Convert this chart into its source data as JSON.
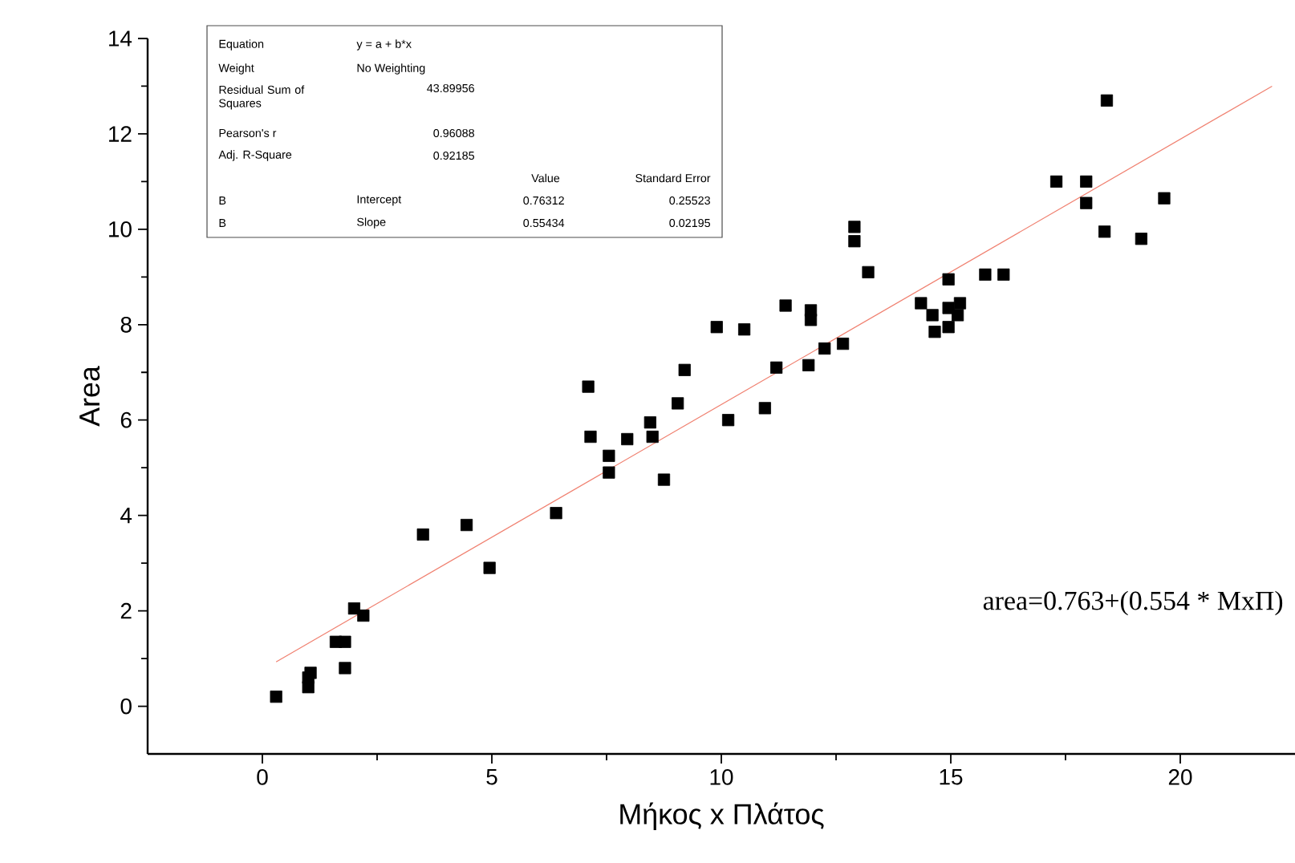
{
  "chart_data": {
    "type": "scatter",
    "xlabel": "Μήκος x Πλάτος",
    "ylabel": "Area",
    "xlim": [
      -2.5,
      22.5
    ],
    "ylim": [
      -1,
      14
    ],
    "xticks": [
      0,
      5,
      10,
      15,
      20
    ],
    "yticks": [
      0,
      2,
      4,
      6,
      8,
      10,
      12,
      14
    ],
    "marker": "square",
    "series": [
      {
        "color": "#000000",
        "x": [
          0.3,
          1.0,
          1.0,
          1.05,
          1.6,
          1.8,
          1.8,
          2.0,
          2.2,
          3.5,
          4.45,
          4.95,
          6.4,
          7.1,
          7.15,
          7.55,
          7.55,
          7.95,
          8.45,
          8.5,
          8.75,
          9.05,
          9.2,
          9.9,
          10.15,
          10.5,
          10.95,
          11.2,
          11.4,
          11.9,
          11.95,
          11.95,
          12.25,
          12.65,
          12.9,
          12.9,
          13.2,
          14.35,
          14.6,
          14.65,
          14.95,
          14.95,
          14.95,
          15.15,
          15.2,
          15.75,
          16.15,
          17.3,
          17.95,
          17.95,
          18.35,
          18.4,
          19.15,
          19.65
        ],
        "values": [
          0.2,
          0.4,
          0.6,
          0.7,
          1.35,
          1.35,
          0.8,
          2.05,
          1.9,
          3.6,
          3.8,
          2.9,
          4.05,
          6.7,
          5.65,
          5.25,
          4.9,
          5.6,
          5.95,
          5.65,
          4.75,
          6.35,
          7.05,
          7.95,
          6.0,
          7.9,
          6.25,
          7.1,
          8.4,
          7.15,
          8.3,
          8.1,
          7.5,
          7.6,
          10.05,
          9.75,
          9.1,
          8.45,
          8.2,
          7.85,
          8.95,
          8.35,
          7.95,
          8.2,
          8.45,
          9.05,
          9.05,
          11.0,
          11.0,
          10.55,
          9.95,
          12.7,
          9.8,
          10.65
        ]
      },
      {
        "type": "line",
        "marker": "none",
        "color": "#f08070",
        "x": [
          0.3,
          22.0
        ],
        "values": [
          0.93,
          13.0
        ]
      }
    ],
    "annotations": [
      "Equation",
      "y = a + b*x",
      "Weight",
      "No Weighting",
      "Residual Sum of Squares",
      "43.89956",
      "Pearson's r",
      "0.96088",
      "Adj. R-Square",
      "0.92185",
      "Value",
      "Standard Error",
      "B",
      "Intercept",
      "0.76312",
      "0.25523",
      "B",
      "Slope",
      "0.55434",
      "0.02195",
      "area=0.763+(0.554 * MxΠ)"
    ]
  }
}
